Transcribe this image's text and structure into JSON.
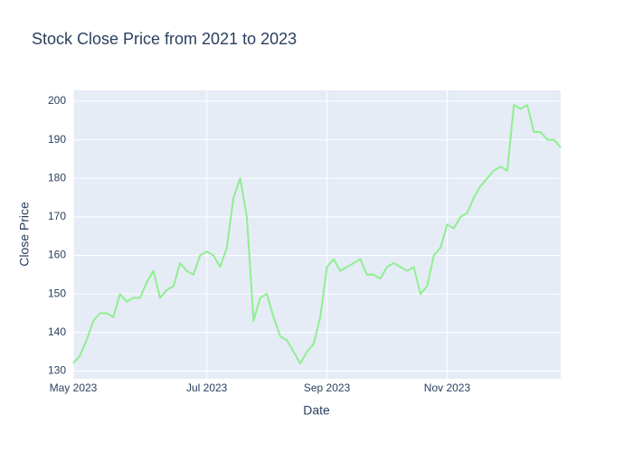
{
  "chart_data": {
    "type": "line",
    "title": "Stock Close Price from 2021 to 2023",
    "x_label": "Date",
    "y_label": "Close Price",
    "categories": [
      "May 2023",
      null,
      null,
      null,
      null,
      null,
      null,
      null,
      null,
      null,
      null,
      null,
      null,
      null,
      null,
      null,
      null,
      null,
      null,
      null,
      "Jul 2023",
      null,
      null,
      null,
      null,
      null,
      null,
      null,
      null,
      null,
      null,
      null,
      null,
      null,
      null,
      null,
      null,
      null,
      "Sep 2023",
      null,
      null,
      null,
      null,
      null,
      null,
      null,
      null,
      null,
      null,
      null,
      null,
      null,
      null,
      null,
      null,
      null,
      "Nov 2023",
      null,
      null,
      null,
      null,
      null,
      null,
      null,
      null,
      null,
      null,
      null,
      null,
      null,
      null,
      null,
      null,
      null
    ],
    "values": [
      132,
      134,
      138,
      143,
      145,
      145,
      144,
      150,
      148,
      149,
      149,
      153,
      156,
      149,
      151,
      152,
      158,
      156,
      155,
      160,
      161,
      160,
      157,
      162,
      175,
      180,
      170,
      143,
      149,
      150,
      144,
      139,
      138,
      135,
      132,
      135,
      137,
      144,
      157,
      159,
      156,
      157,
      158,
      159,
      155,
      155,
      154,
      157,
      158,
      157,
      156,
      157,
      150,
      152,
      160,
      162,
      168,
      167,
      170,
      171,
      175,
      178,
      180,
      182,
      183,
      182,
      199,
      198,
      199,
      192,
      192,
      190,
      190,
      188
    ],
    "color": "#90ee90",
    "ylim": [
      128,
      202.8
    ],
    "yticks": [
      130,
      140,
      150,
      160,
      170,
      180,
      190,
      200
    ],
    "grid": true
  }
}
